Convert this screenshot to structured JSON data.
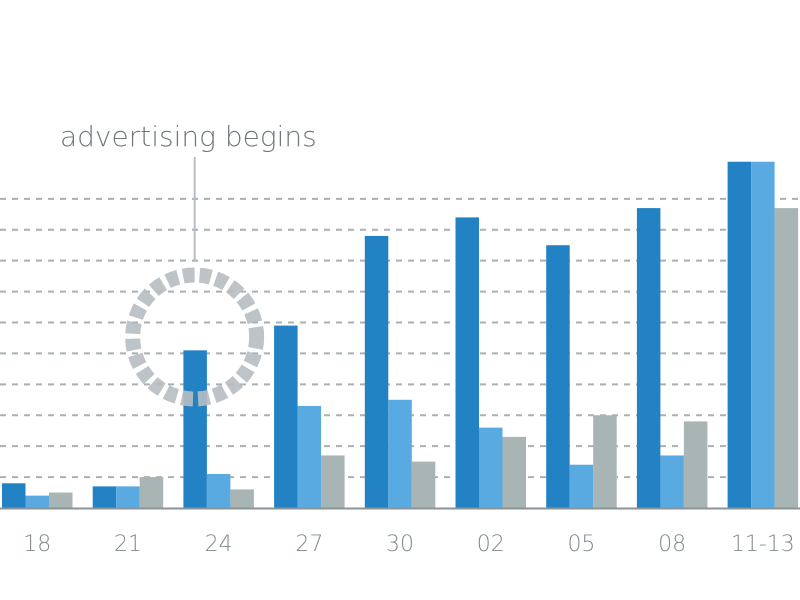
{
  "chart_data": {
    "type": "bar",
    "categories": [
      "18",
      "21",
      "24",
      "27",
      "30",
      "02",
      "05",
      "08",
      "11-13"
    ],
    "series": [
      {
        "values": [
          0.8,
          0.7,
          5.1,
          5.9,
          8.8,
          9.4,
          8.5,
          9.7,
          11.2
        ]
      },
      {
        "values": [
          0.4,
          0.7,
          1.1,
          3.3,
          3.5,
          2.6,
          1.4,
          1.7,
          11.2
        ]
      },
      {
        "values": [
          0.5,
          1.0,
          0.6,
          1.7,
          1.5,
          2.3,
          3.0,
          2.8,
          9.7
        ]
      }
    ],
    "ylim": [
      0,
      12
    ],
    "grid": true,
    "annotation": {
      "text": "advertising begins",
      "category": "24"
    },
    "colors": {
      "series": [
        "#2382c4",
        "#58aae0",
        "#a9b4b4"
      ],
      "grid": "#a9b0b3",
      "axis": "#8a9498",
      "marker": "#b7bdc2"
    }
  }
}
